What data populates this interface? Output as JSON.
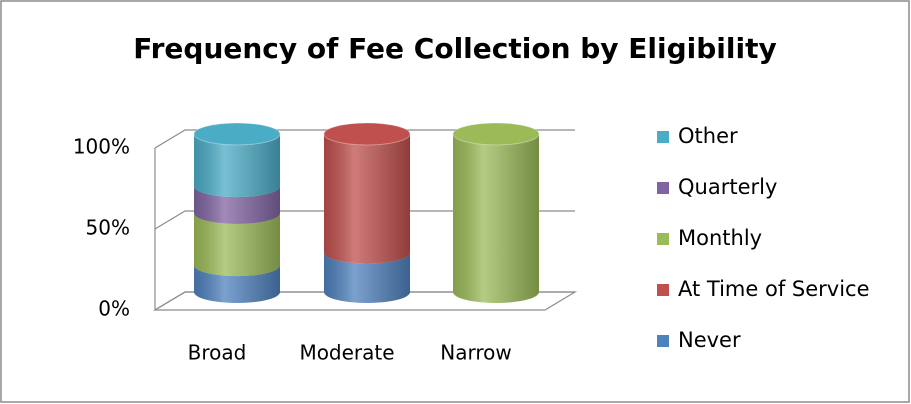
{
  "chart_data": {
    "type": "bar",
    "stacked": true,
    "title": "Frequency of Fee Collection by Eligibility",
    "categories": [
      "Broad",
      "Moderate",
      "Narrow"
    ],
    "series": [
      {
        "name": "Never",
        "color": "#4f81bd",
        "values": [
          17,
          25,
          0
        ]
      },
      {
        "name": "At Time of Service",
        "color": "#c0504d",
        "values": [
          0,
          75,
          0
        ]
      },
      {
        "name": "Monthly",
        "color": "#9bbb59",
        "values": [
          33,
          0,
          100
        ]
      },
      {
        "name": "Quarterly",
        "color": "#8064a2",
        "values": [
          17,
          0,
          0
        ]
      },
      {
        "name": "Other",
        "color": "#4bacc6",
        "values": [
          33,
          0,
          0
        ]
      }
    ],
    "ylim": [
      0,
      100
    ],
    "yticks": [
      {
        "value": 0,
        "label": "0%"
      },
      {
        "value": 50,
        "label": "50%"
      },
      {
        "value": 100,
        "label": "100%"
      }
    ],
    "grid": true,
    "legend": "right"
  }
}
